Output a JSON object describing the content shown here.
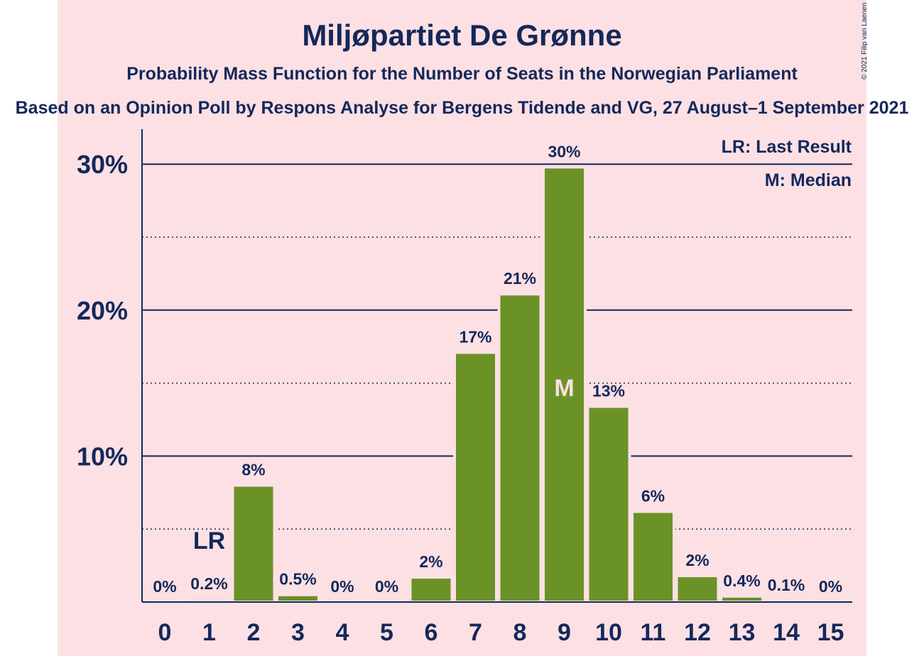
{
  "title": "Miljøpartiet De Grønne",
  "subtitle": "Probability Mass Function for the Number of Seats in the Norwegian Parliament",
  "subtitle2": "Based on an Opinion Poll by Respons Analyse for Bergens Tidende and VG, 27 August–1 September 2021",
  "copyright": "© 2021 Filip van Laenen",
  "legend": {
    "lr": "LR: Last Result",
    "m": "M: Median"
  },
  "colors": {
    "background": "#fde0e4",
    "bar": "#6b9227",
    "axis": "#14285a",
    "median_text": "#fde0e4"
  },
  "chart_data": {
    "type": "bar",
    "categories": [
      "0",
      "1",
      "2",
      "3",
      "4",
      "5",
      "6",
      "7",
      "8",
      "9",
      "10",
      "11",
      "12",
      "13",
      "14",
      "15"
    ],
    "values": [
      0,
      0.2,
      8,
      0.5,
      0,
      0,
      1.7,
      17.1,
      21.1,
      29.8,
      13.4,
      6.2,
      1.8,
      0.4,
      0.1,
      0
    ],
    "data_labels": [
      "0%",
      "0.2%",
      "8%",
      "0.5%",
      "0%",
      "0%",
      "2%",
      "17%",
      "21%",
      "30%",
      "13%",
      "6%",
      "2%",
      "0.4%",
      "0.1%",
      "0%"
    ],
    "y_ticks": [
      10,
      20,
      30
    ],
    "y_tick_labels": [
      "10%",
      "20%",
      "30%"
    ],
    "ylim": [
      0,
      32
    ],
    "grid": true,
    "last_result": {
      "seat": "1",
      "label": "LR"
    },
    "median": {
      "seat": "9",
      "label": "M"
    },
    "legend_position": "top-right"
  }
}
